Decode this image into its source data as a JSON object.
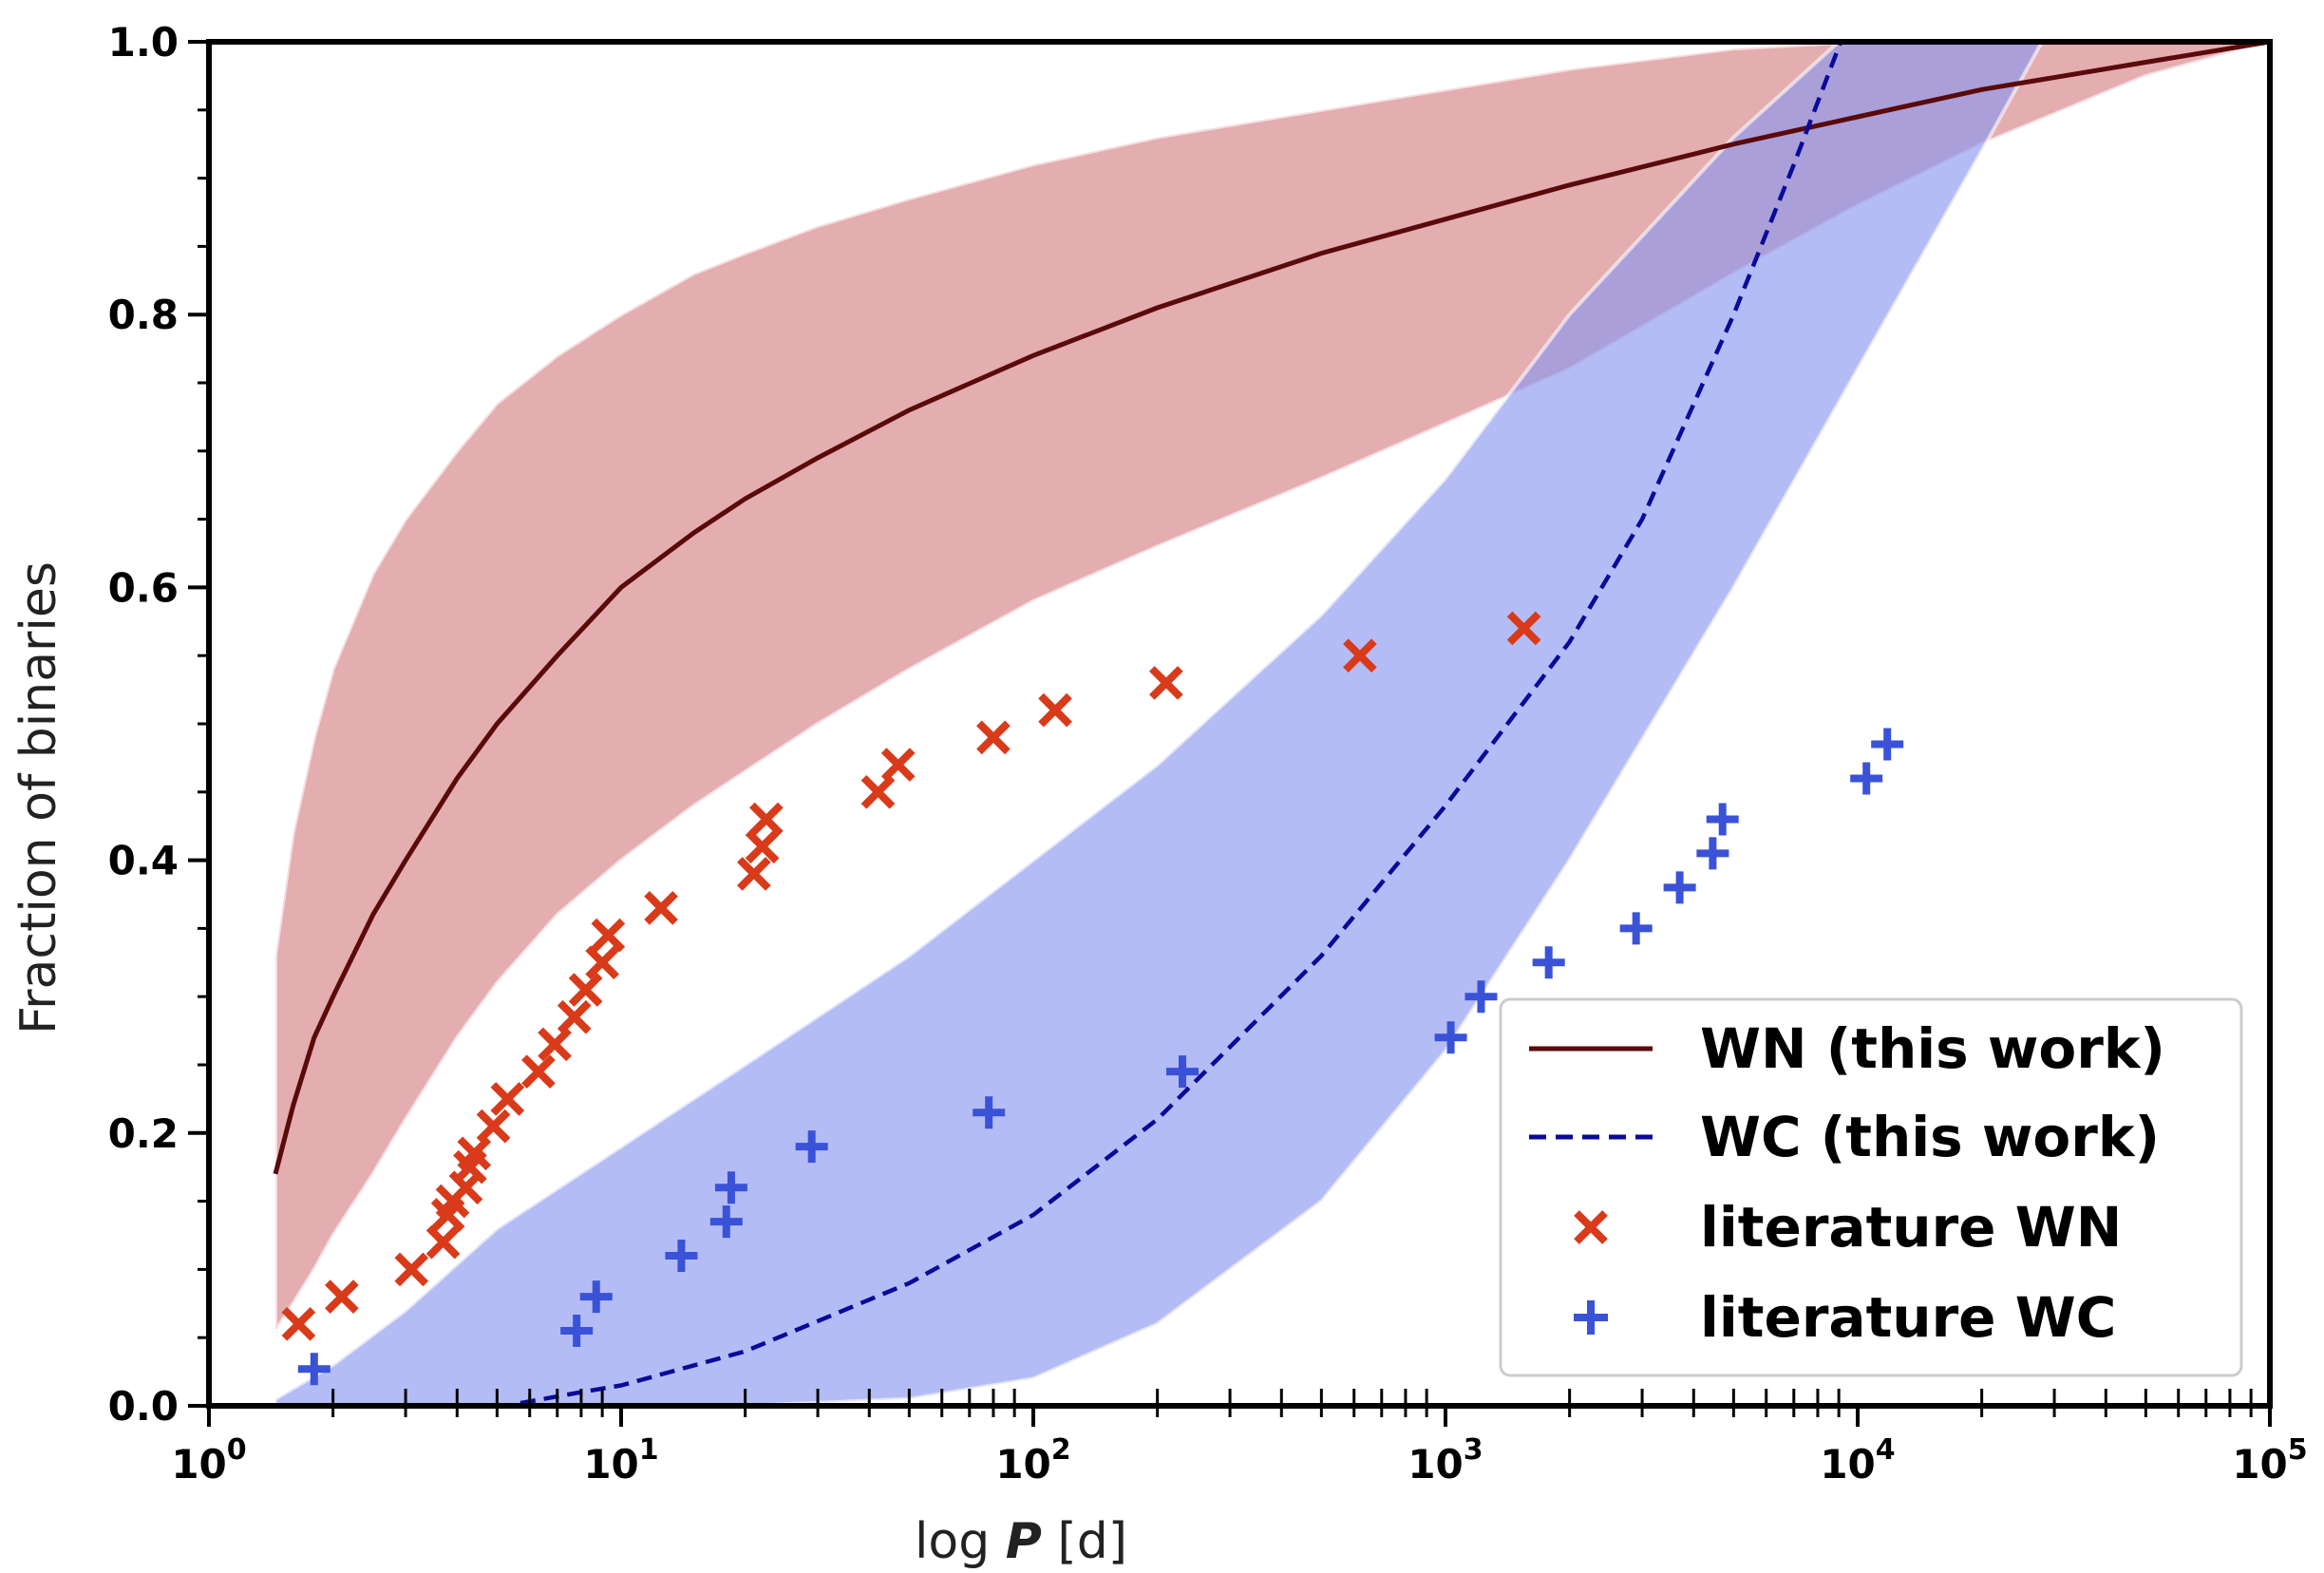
{
  "chart_data": {
    "type": "line",
    "xscale": "log",
    "xlim": [
      1,
      100000
    ],
    "ylim": [
      0.0,
      1.0
    ],
    "xlabel_prefix": "log ",
    "xlabel_var": "P",
    "xlabel_unit": " [d]",
    "ylabel": "Fraction of binaries",
    "legend_position": "lower right",
    "y_ticks": [
      "0.0",
      "0.2",
      "0.4",
      "0.6",
      "0.8",
      "1.0"
    ],
    "x_ticks": [
      {
        "value": 1,
        "base": "10",
        "exp": "0"
      },
      {
        "value": 10,
        "base": "10",
        "exp": "1"
      },
      {
        "value": 100,
        "base": "10",
        "exp": "2"
      },
      {
        "value": 1000,
        "base": "10",
        "exp": "3"
      },
      {
        "value": 10000,
        "base": "10",
        "exp": "4"
      },
      {
        "value": 100000,
        "base": "10",
        "exp": "5"
      }
    ],
    "colors": {
      "wn_line": "#5a0a0a",
      "wn_band": "#d98a8e",
      "wc_line": "#0a0a9a",
      "wc_band": "#8c98f0",
      "lit_wn": "#d93a1a",
      "lit_wc": "#3a52d8"
    },
    "series": [
      {
        "name": "WN (this work)",
        "style": "solid",
        "x": [
          1.45,
          1.6,
          1.8,
          2.0,
          2.5,
          3,
          4,
          5,
          7,
          10,
          15,
          20,
          30,
          50,
          100,
          200,
          500,
          1000,
          2000,
          5000,
          10000,
          20000,
          50000,
          100000
        ],
        "y": [
          0.17,
          0.22,
          0.27,
          0.3,
          0.36,
          0.4,
          0.46,
          0.5,
          0.55,
          0.6,
          0.64,
          0.665,
          0.695,
          0.73,
          0.77,
          0.805,
          0.845,
          0.87,
          0.895,
          0.925,
          0.945,
          0.965,
          0.985,
          1.0
        ],
        "band_upper": {
          "x": [
            1.45,
            1.6,
            1.8,
            2.0,
            2.5,
            3,
            4,
            5,
            7,
            10,
            15,
            20,
            30,
            50,
            100,
            200,
            500,
            1000,
            2000,
            5000,
            10000,
            20000,
            50000,
            100000
          ],
          "y": [
            0.33,
            0.42,
            0.49,
            0.54,
            0.61,
            0.65,
            0.7,
            0.735,
            0.77,
            0.8,
            0.83,
            0.845,
            0.865,
            0.885,
            0.91,
            0.93,
            0.95,
            0.965,
            0.98,
            0.995,
            1.0,
            1.0,
            1.0,
            1.0
          ]
        },
        "band_lower": {
          "x": [
            1.45,
            1.6,
            1.8,
            2.0,
            2.5,
            3,
            4,
            5,
            7,
            10,
            15,
            20,
            30,
            50,
            100,
            200,
            500,
            1000,
            2000,
            5000,
            10000,
            20000,
            50000,
            100000
          ],
          "y": [
            0.055,
            0.075,
            0.1,
            0.125,
            0.17,
            0.21,
            0.27,
            0.31,
            0.36,
            0.4,
            0.44,
            0.465,
            0.5,
            0.54,
            0.59,
            0.63,
            0.68,
            0.72,
            0.76,
            0.83,
            0.88,
            0.925,
            0.975,
            1.0
          ]
        }
      },
      {
        "name": "WC (this work)",
        "style": "dashed",
        "x": [
          5.7,
          8,
          10,
          20,
          50,
          100,
          200,
          500,
          1000,
          2000,
          3000,
          5000,
          7000,
          9100
        ],
        "y": [
          0.002,
          0.01,
          0.015,
          0.04,
          0.09,
          0.14,
          0.21,
          0.33,
          0.44,
          0.56,
          0.65,
          0.8,
          0.91,
          1.0
        ],
        "band_upper": {
          "x": [
            1.45,
            2,
            3,
            5,
            10,
            20,
            50,
            100,
            200,
            500,
            1000,
            2000,
            5000,
            9000,
            13000
          ],
          "y": [
            0.005,
            0.03,
            0.07,
            0.13,
            0.19,
            0.25,
            0.33,
            0.4,
            0.47,
            0.58,
            0.68,
            0.8,
            0.93,
            1.0,
            1.0
          ]
        },
        "band_lower": {
          "x": [
            1.45,
            5,
            20,
            50,
            100,
            200,
            500,
            1000,
            2000,
            5000,
            10000,
            20000,
            28000
          ],
          "y": [
            0.0,
            0.0,
            0.0,
            0.005,
            0.02,
            0.06,
            0.15,
            0.26,
            0.4,
            0.6,
            0.76,
            0.92,
            1.0
          ]
        }
      },
      {
        "name": "literature WN",
        "style": "marker-x",
        "x": [
          1.65,
          2.1,
          3.1,
          3.7,
          3.8,
          3.9,
          4.2,
          4.3,
          4.4,
          4.9,
          5.3,
          6.3,
          6.9,
          7.7,
          8.2,
          9.0,
          9.3,
          12.5,
          21,
          22,
          22.5,
          42,
          47,
          80,
          113,
          210,
          620,
          1550
        ],
        "y": [
          0.06,
          0.08,
          0.1,
          0.12,
          0.14,
          0.15,
          0.16,
          0.175,
          0.185,
          0.205,
          0.225,
          0.245,
          0.265,
          0.285,
          0.305,
          0.325,
          0.345,
          0.365,
          0.39,
          0.41,
          0.43,
          0.45,
          0.47,
          0.49,
          0.51,
          0.53,
          0.55,
          0.57
        ]
      },
      {
        "name": "literature WC",
        "style": "marker-plus",
        "x": [
          1.8,
          7.8,
          8.7,
          14,
          18,
          18.5,
          29,
          78,
          230,
          1030,
          1220,
          1780,
          2900,
          3700,
          4450,
          4700,
          10500,
          11800
        ],
        "y": [
          0.027,
          0.055,
          0.08,
          0.11,
          0.135,
          0.16,
          0.19,
          0.215,
          0.245,
          0.27,
          0.3,
          0.325,
          0.35,
          0.38,
          0.405,
          0.43,
          0.46,
          0.485
        ]
      }
    ]
  }
}
